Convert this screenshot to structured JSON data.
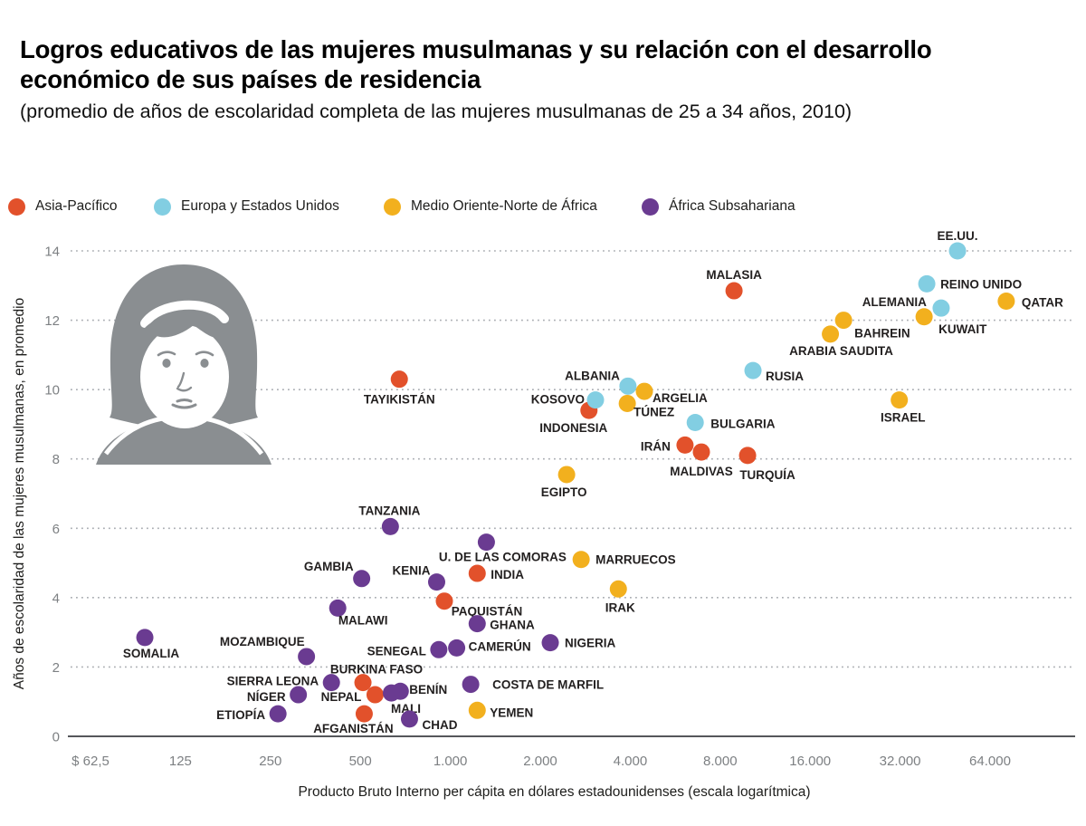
{
  "header": {
    "title": "Logros educativos de las mujeres musulmanas y su relación con el desarrollo económico de sus países de residencia",
    "subtitle": "(promedio de años de escolaridad completa de las mujeres musulmanas de 25 a 34 años, 2010)"
  },
  "legend": {
    "items": [
      {
        "key": "asia",
        "label": "Asia-Pacífico",
        "color": "#E2512B"
      },
      {
        "key": "europa",
        "label": "Europa y Estados Unidos",
        "color": "#82CEE2"
      },
      {
        "key": "mena",
        "label": "Medio Oriente-Norte de África",
        "color": "#F2B01E"
      },
      {
        "key": "africa",
        "label": "África Subsahariana",
        "color": "#6A3B91"
      }
    ]
  },
  "illustration": {
    "name": "muslim-girl-portrait",
    "color": "#8A8E91"
  },
  "chart_data": {
    "type": "scatter",
    "title": "Logros educativos de las mujeres musulmanas y su relación con el desarrollo económico de sus países de residencia",
    "xlabel": "Producto Bruto Interno per cápita en dólares estadounidenses (escala logarítmica)",
    "ylabel": "Años de escolaridad de las mujeres musulmanas, en promedio",
    "x_axis": {
      "scale": "log2",
      "min": 62.5,
      "max": 64000,
      "grid": false,
      "ticks": [
        {
          "label": "$ 62,5",
          "value": 62.5
        },
        {
          "label": "125",
          "value": 125
        },
        {
          "label": "250",
          "value": 250
        },
        {
          "label": "500",
          "value": 500
        },
        {
          "label": "1.000",
          "value": 1000
        },
        {
          "label": "2.000",
          "value": 2000
        },
        {
          "label": "4.000",
          "value": 4000
        },
        {
          "label": "8.000",
          "value": 8000
        },
        {
          "label": "16.000",
          "value": 16000
        },
        {
          "label": "32.000",
          "value": 32000
        },
        {
          "label": "64.000",
          "value": 64000
        }
      ]
    },
    "y_axis": {
      "min": 0,
      "max": 14,
      "ticks": [
        0,
        2,
        4,
        6,
        8,
        10,
        12,
        14
      ],
      "grid": "dotted"
    },
    "legend_position": "top",
    "series": [
      {
        "name": "Asia-Pacífico",
        "key": "asia",
        "color": "#E2512B",
        "points": [
          {
            "country": "MALASIA",
            "gdp": 8900,
            "years": 12.85,
            "label": {
              "anchor": "middle",
              "dx": 0,
              "dy": -13
            }
          },
          {
            "country": "TAYIKISTÁN",
            "gdp": 675,
            "years": 10.3,
            "label": {
              "anchor": "middle",
              "dx": 0,
              "dy": 27
            }
          },
          {
            "country": "INDONESIA",
            "gdp": 2910,
            "years": 9.4,
            "label": {
              "anchor": "middle",
              "dx": -17,
              "dy": 24
            }
          },
          {
            "country": "IRÁN",
            "gdp": 6100,
            "years": 8.4,
            "label": {
              "anchor": "end",
              "dx": -16,
              "dy": 6
            }
          },
          {
            "country": "MALDIVAS",
            "gdp": 6920,
            "years": 8.2,
            "label": {
              "anchor": "middle",
              "dx": 0,
              "dy": 26
            }
          },
          {
            "country": "TURQUÍA",
            "gdp": 9880,
            "years": 8.1,
            "label": {
              "anchor": "middle",
              "dx": 22,
              "dy": 26
            }
          },
          {
            "country": "PAQUISTÁN",
            "gdp": 955,
            "years": 3.9,
            "label": {
              "anchor": "middle",
              "dx": 47,
              "dy": 16
            }
          },
          {
            "country": "INDIA",
            "gdp": 1230,
            "years": 4.7,
            "label": {
              "anchor": "start",
              "dx": 15,
              "dy": 6
            }
          },
          {
            "country": "NEPAL",
            "gdp": 560,
            "years": 1.2,
            "label": {
              "anchor": "end",
              "dx": -15,
              "dy": 7
            }
          },
          {
            "country": "BURKINA FASO",
            "gdp": 510,
            "years": 1.55,
            "label": {
              "anchor": "middle",
              "dx": 15,
              "dy": -10
            }
          },
          {
            "country": "AFGANISTÁN",
            "gdp": 515,
            "years": 0.65,
            "label": {
              "anchor": "middle",
              "dx": -12,
              "dy": 21
            }
          }
        ]
      },
      {
        "name": "Europa y Estados Unidos",
        "key": "europa",
        "color": "#82CEE2",
        "points": [
          {
            "country": "EE.UU.",
            "gdp": 49800,
            "years": 14.0,
            "label": {
              "anchor": "middle",
              "dx": 0,
              "dy": -12
            }
          },
          {
            "country": "REINO UNIDO",
            "gdp": 39300,
            "years": 13.05,
            "label": {
              "anchor": "start",
              "dx": 15,
              "dy": 5
            }
          },
          {
            "country": "ALEMANIA",
            "gdp": 43900,
            "years": 12.35,
            "label": {
              "anchor": "end",
              "dx": -16,
              "dy": -2
            }
          },
          {
            "country": "RUSIA",
            "gdp": 10300,
            "years": 10.55,
            "label": {
              "anchor": "start",
              "dx": 14,
              "dy": 11
            }
          },
          {
            "country": "ALBANIA",
            "gdp": 3930,
            "years": 10.1,
            "label": {
              "anchor": "end",
              "dx": -9,
              "dy": -7
            }
          },
          {
            "country": "KOSOVO",
            "gdp": 3060,
            "years": 9.7,
            "label": {
              "anchor": "end",
              "dx": -12,
              "dy": 4
            }
          },
          {
            "country": "BULGARIA",
            "gdp": 6600,
            "years": 9.05,
            "label": {
              "anchor": "start",
              "dx": 17,
              "dy": 6
            }
          }
        ]
      },
      {
        "name": "Medio Oriente-Norte de África",
        "key": "mena",
        "color": "#F2B01E",
        "points": [
          {
            "country": "QATAR",
            "gdp": 72500,
            "years": 12.55,
            "label": {
              "anchor": "start",
              "dx": 17,
              "dy": 6
            }
          },
          {
            "country": "KUWAIT",
            "gdp": 38500,
            "years": 12.1,
            "label": {
              "anchor": "start",
              "dx": 16,
              "dy": 18
            }
          },
          {
            "country": "BAHREIN",
            "gdp": 20700,
            "years": 12.0,
            "label": {
              "anchor": "start",
              "dx": 12,
              "dy": 19
            }
          },
          {
            "country": "ARABIA SAUDITA",
            "gdp": 18700,
            "years": 11.6,
            "label": {
              "anchor": "middle",
              "dx": 12,
              "dy": 23
            }
          },
          {
            "country": "ARGELIA",
            "gdp": 4460,
            "years": 9.95,
            "label": {
              "anchor": "start",
              "dx": 9,
              "dy": 12
            }
          },
          {
            "country": "TÚNEZ",
            "gdp": 3910,
            "years": 9.6,
            "label": {
              "anchor": "start",
              "dx": 7,
              "dy": 14
            }
          },
          {
            "country": "ISRAEL",
            "gdp": 31800,
            "years": 9.7,
            "label": {
              "anchor": "middle",
              "dx": 4,
              "dy": 24
            }
          },
          {
            "country": "EGIPTO",
            "gdp": 2450,
            "years": 7.55,
            "label": {
              "anchor": "middle",
              "dx": -3,
              "dy": 24
            }
          },
          {
            "country": "MARRUECOS",
            "gdp": 2740,
            "years": 5.1,
            "label": {
              "anchor": "start",
              "dx": 16,
              "dy": 5
            }
          },
          {
            "country": "IRAK",
            "gdp": 3650,
            "years": 4.25,
            "label": {
              "anchor": "middle",
              "dx": 2,
              "dy": 25
            }
          },
          {
            "country": "YEMEN",
            "gdp": 1230,
            "years": 0.75,
            "label": {
              "anchor": "start",
              "dx": 14,
              "dy": 7
            }
          }
        ]
      },
      {
        "name": "África Subsahariana",
        "key": "africa",
        "color": "#6A3B91",
        "points": [
          {
            "country": "TANZANIA",
            "gdp": 630,
            "years": 6.05,
            "label": {
              "anchor": "middle",
              "dx": -1,
              "dy": -13
            }
          },
          {
            "country": "U. DE LAS COMORAS",
            "gdp": 1320,
            "years": 5.6,
            "label": {
              "anchor": "middle",
              "dx": 18,
              "dy": 21
            }
          },
          {
            "country": "GAMBIA",
            "gdp": 505,
            "years": 4.55,
            "label": {
              "anchor": "end",
              "dx": -9,
              "dy": -9
            }
          },
          {
            "country": "KENIA",
            "gdp": 900,
            "years": 4.45,
            "label": {
              "anchor": "end",
              "dx": -7,
              "dy": -8
            }
          },
          {
            "country": "MALAWI",
            "gdp": 420,
            "years": 3.7,
            "label": {
              "anchor": "middle",
              "dx": 28,
              "dy": 18
            }
          },
          {
            "country": "SOMALIA",
            "gdp": 95,
            "years": 2.85,
            "label": {
              "anchor": "middle",
              "dx": 7,
              "dy": 22
            }
          },
          {
            "country": "MOZAMBIQUE",
            "gdp": 330,
            "years": 2.3,
            "label": {
              "anchor": "end",
              "dx": -2,
              "dy": -12
            }
          },
          {
            "country": "SENEGAL",
            "gdp": 915,
            "years": 2.5,
            "label": {
              "anchor": "end",
              "dx": -14,
              "dy": 6
            }
          },
          {
            "country": "CAMERÚN",
            "gdp": 1050,
            "years": 2.55,
            "label": {
              "anchor": "start",
              "dx": 13,
              "dy": 3
            }
          },
          {
            "country": "GHANA",
            "gdp": 1230,
            "years": 3.25,
            "label": {
              "anchor": "start",
              "dx": 14,
              "dy": 6
            }
          },
          {
            "country": "NIGERIA",
            "gdp": 2160,
            "years": 2.7,
            "label": {
              "anchor": "start",
              "dx": 16,
              "dy": 5
            }
          },
          {
            "country": "SIERRA LEONA",
            "gdp": 400,
            "years": 1.55,
            "label": {
              "anchor": "end",
              "dx": -14,
              "dy": 3
            }
          },
          {
            "country": "NÍGER",
            "gdp": 310,
            "years": 1.2,
            "label": {
              "anchor": "end",
              "dx": -14,
              "dy": 7
            }
          },
          {
            "country": "BENÍN",
            "gdp": 680,
            "years": 1.3,
            "label": {
              "anchor": "start",
              "dx": 10,
              "dy": 3
            }
          },
          {
            "country": "MALI",
            "gdp": 635,
            "years": 1.25,
            "label": {
              "anchor": "middle",
              "dx": 16,
              "dy": 22
            }
          },
          {
            "country": "COSTA DE MARFIL",
            "gdp": 1170,
            "years": 1.5,
            "label": {
              "anchor": "start",
              "dx": 24,
              "dy": 5
            }
          },
          {
            "country": "ETIOPÍA",
            "gdp": 265,
            "years": 0.65,
            "label": {
              "anchor": "end",
              "dx": -14,
              "dy": 6
            }
          },
          {
            "country": "CHAD",
            "gdp": 730,
            "years": 0.5,
            "label": {
              "anchor": "start",
              "dx": 14,
              "dy": 11
            }
          }
        ]
      }
    ]
  }
}
